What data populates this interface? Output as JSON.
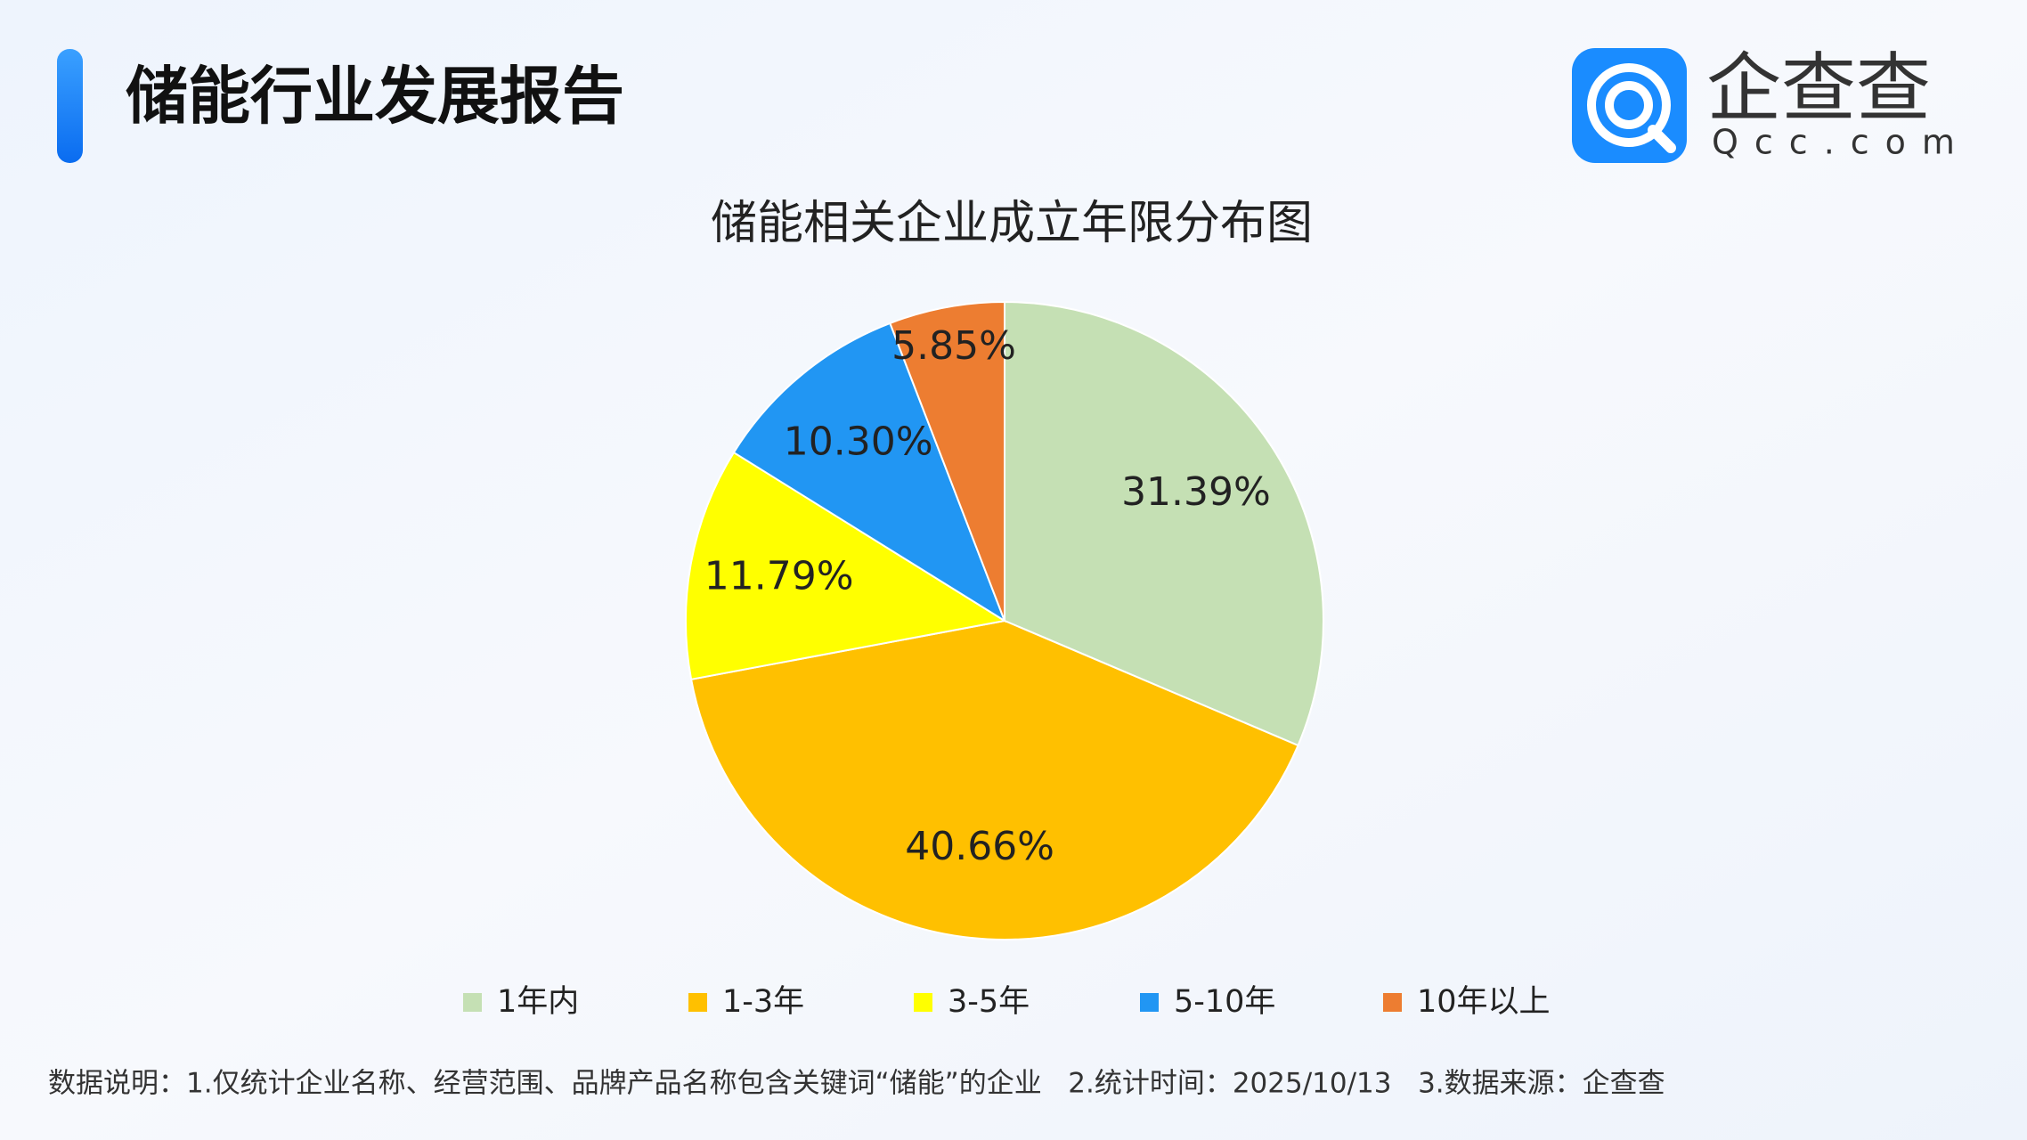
{
  "header": {
    "title": "储能行业发展报告"
  },
  "logo": {
    "name": "企查查",
    "domain": "Qcc.com"
  },
  "chart_data": {
    "type": "pie",
    "title": "储能相关企业成立年限分布图",
    "categories": [
      "1年内",
      "1-3年",
      "3-5年",
      "5-10年",
      "10年以上"
    ],
    "values": [
      31.39,
      40.66,
      11.79,
      10.3,
      5.85
    ],
    "value_labels": [
      "31.39%",
      "40.66%",
      "11.79%",
      "10.30%",
      "5.85%"
    ],
    "colors": [
      "#c5e0b4",
      "#ffc000",
      "#ffff00",
      "#2196f3",
      "#ed7d31"
    ],
    "legend": "bottom"
  },
  "footnote": "数据说明：1.仅统计企业名称、经营范围、品牌产品名称包含关键词“储能”的企业   2.统计时间：2025/10/13   3.数据来源：企查查"
}
